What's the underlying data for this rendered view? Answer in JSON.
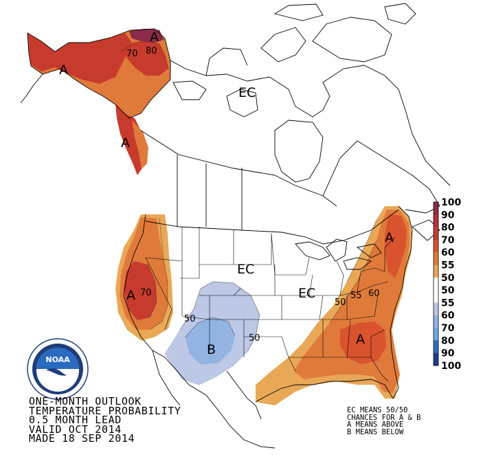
{
  "title_lines": [
    "ONE-MONTH OUTLOOK",
    "TEMPERATURE PROBABILITY",
    "0.5 MONTH LEAD",
    "VALID OCT 2014",
    "MADE 18 SEP 2014"
  ],
  "notes": [
    "EC MEANS 50/50",
    "CHANCES FOR A & B",
    "A MEANS ABOVE",
    "B MEANS BELOW"
  ],
  "logo_text": "NOAA",
  "legend": {
    "items": [
      {
        "label": "100",
        "color": "#8c2c4a"
      },
      {
        "label": "90",
        "color": "#b8313a"
      },
      {
        "label": "80",
        "color": "#c73b2e"
      },
      {
        "label": "70",
        "color": "#d9532e"
      },
      {
        "label": "60",
        "color": "#e07a3a"
      },
      {
        "label": "55",
        "color": "#e8a857"
      },
      {
        "label": "50",
        "color": "#ffffff"
      },
      {
        "label": "50",
        "color": "#ffffff"
      },
      {
        "label": "55",
        "color": "#bdc8e6"
      },
      {
        "label": "60",
        "color": "#93b4e3"
      },
      {
        "label": "70",
        "color": "#6ea8e6"
      },
      {
        "label": "80",
        "color": "#2f6fba"
      },
      {
        "label": "90",
        "color": "#223f8a"
      },
      {
        "label": "100",
        "color": "#3b1d6e"
      }
    ]
  },
  "region_labels": {
    "alaska_west": "A",
    "alaska_peak": "A",
    "panhandle": "A",
    "west_coast": "A",
    "southeast": "A",
    "northeast": "A",
    "southwest": "B",
    "canada_ec": "EC",
    "central_ec": "EC"
  },
  "contour_labels": {
    "alaska": "70",
    "alaska_80": "80",
    "west": "70",
    "southwest_50": "50",
    "southwest_50b": "50",
    "east_50": "50",
    "east_55": "55",
    "east_60": "60"
  }
}
